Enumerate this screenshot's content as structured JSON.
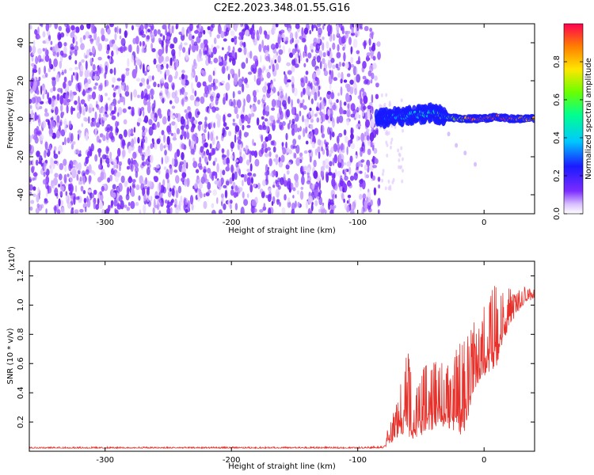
{
  "title": "C2E2.2023.348.01.55.G16",
  "colors": {
    "noise": "#7b2cff",
    "snr_line": "#e8312b",
    "axis": "#000000"
  },
  "chart_data": [
    {
      "type": "heatmap",
      "title": "C2E2.2023.348.01.55.G16",
      "xlabel": "Height of straight line (km)",
      "ylabel": "Frequency (Hz)",
      "xlim": [
        -360,
        40
      ],
      "ylim": [
        -50,
        50
      ],
      "x_ticks": [
        -300,
        -200,
        -100,
        0
      ],
      "y_ticks": [
        40,
        20,
        0,
        -20,
        -40
      ],
      "x_tick_labels": [
        "-300",
        "-200",
        "-100",
        "0"
      ],
      "y_tick_labels": [
        "40",
        "20",
        "0",
        "-20",
        "-40"
      ],
      "colorbar": {
        "label": "Normalized spectral amplitude",
        "range": [
          0,
          1
        ],
        "ticks": [
          0.0,
          0.2,
          0.4,
          0.6,
          0.8
        ],
        "tick_labels": [
          "0.0",
          "0.2",
          "0.4",
          "0.6",
          "0.8"
        ],
        "colormap": [
          "#ffffff",
          "#d9c0ff",
          "#7b2cff",
          "#1a1aff",
          "#00c8ff",
          "#00ff90",
          "#6aff00",
          "#ffe600",
          "#ff7f00",
          "#ff0040"
        ]
      },
      "noise_region": {
        "x_range": [
          -360,
          -83
        ],
        "y_range": [
          -50,
          50
        ],
        "dominant_amplitude": 0.1
      },
      "signal_track": [
        {
          "x": -85,
          "freq": 0,
          "amp": 0.3
        },
        {
          "x": -70,
          "freq": 1,
          "amp": 0.45
        },
        {
          "x": -55,
          "freq": 2,
          "amp": 0.5
        },
        {
          "x": -40,
          "freq": 3,
          "amp": 0.55
        },
        {
          "x": -30,
          "freq": 1,
          "amp": 0.6
        },
        {
          "x": -20,
          "freq": 0,
          "amp": 0.75
        },
        {
          "x": -10,
          "freq": 0,
          "amp": 0.9
        },
        {
          "x": 0,
          "freq": 0,
          "amp": 0.95
        },
        {
          "x": 10,
          "freq": 1,
          "amp": 0.95
        },
        {
          "x": 20,
          "freq": 0,
          "amp": 0.9
        },
        {
          "x": 30,
          "freq": 0,
          "amp": 0.85
        },
        {
          "x": 40,
          "freq": 0,
          "amp": 0.8
        }
      ],
      "branch_track": [
        {
          "x": -28,
          "freq": -8
        },
        {
          "x": -22,
          "freq": -14
        },
        {
          "x": -15,
          "freq": -18
        },
        {
          "x": -7,
          "freq": -24
        }
      ]
    },
    {
      "type": "line",
      "xlabel": "Height of straight line (km)",
      "ylabel": "SNR (10 * v/v)",
      "multiplier_label": "(x10",
      "multiplier_exp": "4",
      "multiplier_close": ")",
      "xlim": [
        -360,
        40
      ],
      "ylim": [
        0,
        1.3
      ],
      "x_ticks": [
        -300,
        -200,
        -100,
        0
      ],
      "y_ticks": [
        0.2,
        0.4,
        0.6,
        0.8,
        1.0,
        1.2
      ],
      "x_tick_labels": [
        "-300",
        "-200",
        "-100",
        "0"
      ],
      "y_tick_labels": [
        "0.2",
        "0.4",
        "0.6",
        "0.8",
        "1.0",
        "1.2"
      ],
      "envelope": {
        "x": [
          -360,
          -300,
          -200,
          -100,
          -80,
          -75,
          -70,
          -65,
          -60,
          -55,
          -50,
          -45,
          -40,
          -35,
          -30,
          -25,
          -20,
          -15,
          -10,
          -5,
          0,
          5,
          10,
          15,
          20,
          25,
          30,
          35,
          40
        ],
        "base": [
          0.02,
          0.02,
          0.02,
          0.02,
          0.02,
          0.05,
          0.08,
          0.1,
          0.1,
          0.08,
          0.1,
          0.12,
          0.15,
          0.18,
          0.15,
          0.12,
          0.1,
          0.1,
          0.35,
          0.45,
          0.5,
          0.55,
          0.55,
          0.75,
          0.85,
          0.92,
          0.98,
          1.02,
          1.05
        ],
        "peak": [
          0.03,
          0.03,
          0.03,
          0.03,
          0.04,
          0.2,
          0.3,
          0.55,
          0.72,
          0.4,
          0.55,
          0.6,
          0.65,
          0.6,
          0.65,
          0.62,
          0.75,
          0.8,
          0.95,
          0.85,
          1.0,
          1.1,
          1.28,
          1.1,
          1.12,
          1.1,
          1.12,
          1.13,
          1.13
        ]
      }
    }
  ]
}
